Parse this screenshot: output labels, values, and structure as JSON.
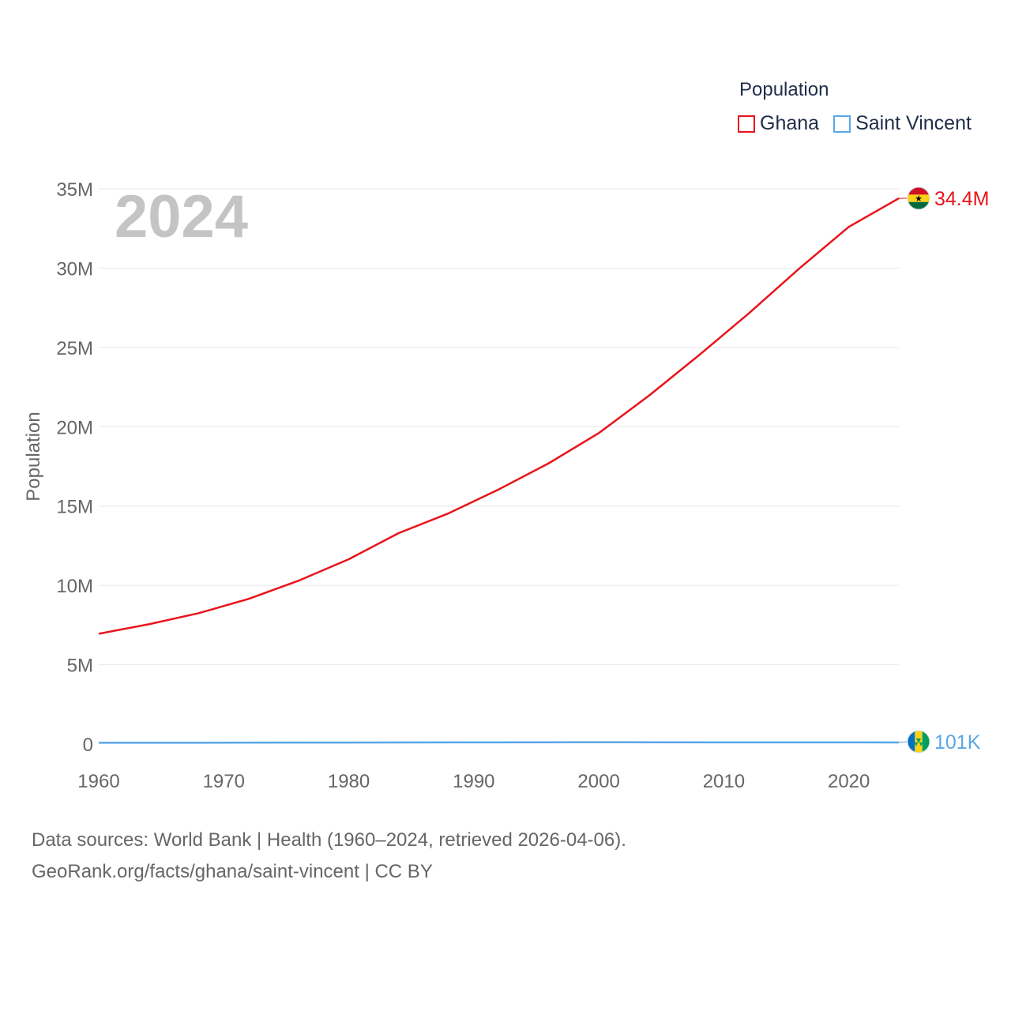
{
  "legend": {
    "title": "Population",
    "items": [
      {
        "name": "Ghana",
        "color": "#e8141c"
      },
      {
        "name": "Saint Vincent",
        "color": "#5aa7e6"
      }
    ]
  },
  "footer": {
    "line1": "Data sources: World Bank | Health (1960–2024, retrieved 2026-04-06).",
    "line2": "GeoRank.org/facts/ghana/saint-vincent | CC BY"
  },
  "chart_data": {
    "type": "line",
    "title": "Population",
    "year_label": "2024",
    "xlabel": "",
    "ylabel": "Population",
    "xlim": [
      1960,
      2024
    ],
    "ylim": [
      0,
      35000000
    ],
    "x_ticks": [
      1960,
      1970,
      1980,
      1990,
      2000,
      2010,
      2020
    ],
    "y_ticks": [
      {
        "value": 0,
        "label": "0"
      },
      {
        "value": 5000000,
        "label": "5M"
      },
      {
        "value": 10000000,
        "label": "10M"
      },
      {
        "value": 15000000,
        "label": "15M"
      },
      {
        "value": 20000000,
        "label": "20M"
      },
      {
        "value": 25000000,
        "label": "25M"
      },
      {
        "value": 30000000,
        "label": "30M"
      },
      {
        "value": 35000000,
        "label": "35M"
      }
    ],
    "grid": true,
    "legend_position": "top-right",
    "series": [
      {
        "name": "Ghana",
        "color": "#e8141c",
        "end_label": "34.4M",
        "flag": "ghana-flag",
        "x": [
          1960,
          1964,
          1968,
          1972,
          1976,
          1980,
          1984,
          1988,
          1992,
          1996,
          2000,
          2004,
          2008,
          2012,
          2016,
          2020,
          2024
        ],
        "values": [
          6950000,
          7550000,
          8250000,
          9150000,
          10300000,
          11650000,
          13300000,
          14550000,
          16050000,
          17700000,
          19600000,
          21950000,
          24500000,
          27150000,
          29950000,
          32600000,
          34400000
        ]
      },
      {
        "name": "Saint Vincent",
        "color": "#5aa7e6",
        "end_label": "101K",
        "flag": "saint-vincent-flag",
        "x": [
          1960,
          1970,
          1980,
          1990,
          2000,
          2010,
          2020,
          2024
        ],
        "values": [
          81000,
          87000,
          97000,
          107000,
          108000,
          107000,
          104000,
          101000
        ]
      }
    ]
  }
}
